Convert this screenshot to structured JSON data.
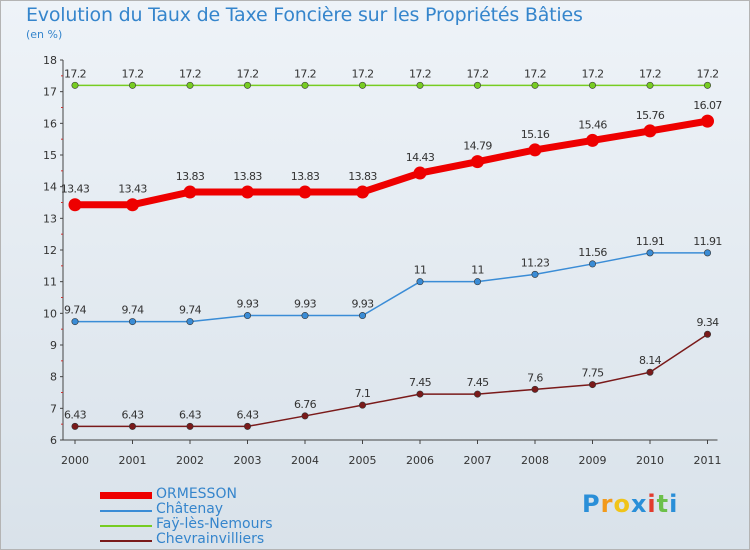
{
  "chart_data": {
    "type": "line",
    "title": "Evolution du Taux de Taxe Foncière sur les Propriétés Bâties",
    "unit": "(en %)",
    "x": [
      "2000",
      "2001",
      "2002",
      "2003",
      "2004",
      "2005",
      "2006",
      "2007",
      "2008",
      "2009",
      "2010",
      "2011"
    ],
    "ylim": [
      6,
      18
    ],
    "yticks": [
      "6",
      "7",
      "8",
      "9",
      "10",
      "11",
      "12",
      "13",
      "14",
      "15",
      "16",
      "17",
      "18"
    ],
    "grid": false,
    "series": [
      {
        "name": "ORMESSON",
        "color": "#ee0000",
        "values": [
          13.43,
          13.43,
          13.83,
          13.83,
          13.83,
          13.83,
          14.43,
          14.79,
          15.16,
          15.46,
          15.76,
          16.07
        ],
        "labels": [
          "13.43",
          "13.43",
          "13.83",
          "13.83",
          "13.83",
          "13.83",
          "14.43",
          "14.79",
          "15.16",
          "15.46",
          "15.76",
          "16.07"
        ]
      },
      {
        "name": "Châtenay",
        "color": "#3a8cd6",
        "values": [
          9.74,
          9.74,
          9.74,
          9.93,
          9.93,
          9.93,
          11,
          11,
          11.23,
          11.56,
          11.91,
          11.91
        ],
        "labels": [
          "9.74",
          "9.74",
          "9.74",
          "9.93",
          "9.93",
          "9.93",
          "11",
          "11",
          "11.23",
          "11.56",
          "11.91",
          "11.91"
        ]
      },
      {
        "name": "Faÿ-lès-Nemours",
        "color": "#77cc22",
        "values": [
          17.2,
          17.2,
          17.2,
          17.2,
          17.2,
          17.2,
          17.2,
          17.2,
          17.2,
          17.2,
          17.2,
          17.2
        ],
        "labels": [
          "17.2",
          "17.2",
          "17.2",
          "17.2",
          "17.2",
          "17.2",
          "17.2",
          "17.2",
          "17.2",
          "17.2",
          "17.2",
          "17.2"
        ]
      },
      {
        "name": "Chevrainvilliers",
        "color": "#7a1a1a",
        "values": [
          6.43,
          6.43,
          6.43,
          6.43,
          6.76,
          7.1,
          7.45,
          7.45,
          7.6,
          7.75,
          8.14,
          9.34
        ],
        "labels": [
          "6.43",
          "6.43",
          "6.43",
          "6.43",
          "6.76",
          "7.1",
          "7.45",
          "7.45",
          "7.6",
          "7.75",
          "8.14",
          "9.34"
        ]
      }
    ]
  },
  "logo": {
    "letters": [
      "P",
      "r",
      "o",
      "x",
      "i",
      "t",
      "i"
    ],
    "colors": [
      "#2a8fd8",
      "#f29a1b",
      "#f0c419",
      "#2a8fd8",
      "#e23b2e",
      "#6cc04a",
      "#2a8fd8"
    ]
  }
}
